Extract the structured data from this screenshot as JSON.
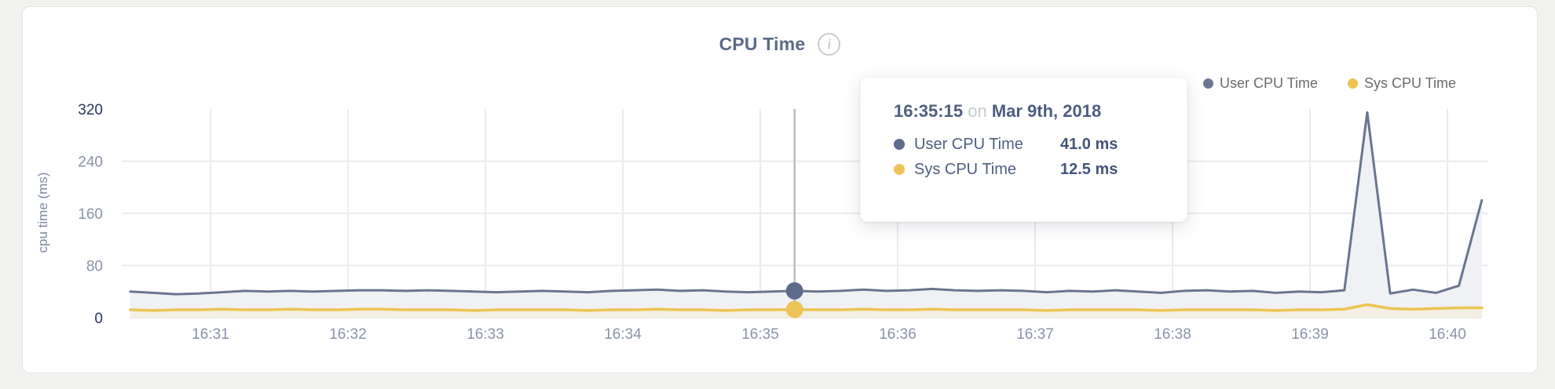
{
  "header": {
    "title": "CPU Time",
    "info_icon_glyph": "i"
  },
  "legend": {
    "items": [
      {
        "label": "User CPU Time",
        "color": "#6b7694"
      },
      {
        "label": "Sys CPU Time",
        "color": "#edc452"
      }
    ]
  },
  "tooltip": {
    "time": "16:35:15",
    "on_word": "on",
    "date": "Mar 9th, 2018",
    "rows": [
      {
        "label": "User CPU Time",
        "value": "41.0 ms",
        "color": "#5f6b8d"
      },
      {
        "label": "Sys CPU Time",
        "value": "12.5 ms",
        "color": "#edc45a"
      }
    ]
  },
  "chart_data": {
    "type": "area",
    "title": "CPU Time",
    "ylabel": "cpu time (ms)",
    "ylim": [
      0,
      320
    ],
    "y_ticks": [
      0,
      80,
      160,
      240,
      320
    ],
    "y_tick_emphasis": [
      0,
      320
    ],
    "x_tick_labels": [
      "16:31",
      "16:32",
      "16:33",
      "16:34",
      "16:35",
      "16:36",
      "16:37",
      "16:38",
      "16:39",
      "16:40"
    ],
    "x_start_time": "16:30:25",
    "x_interval_seconds": 10,
    "grid": true,
    "legend_position": "top-right",
    "hover_point_index": 29,
    "hover_point_time": "16:35:15",
    "series": [
      {
        "name": "User CPU Time",
        "line_color": "#6b7590",
        "fill_color": "#eff1f5",
        "dot_color": "#5f6b8d",
        "values": [
          40,
          38,
          36,
          37,
          39,
          41,
          40,
          41,
          40,
          41,
          42,
          42,
          41,
          42,
          41,
          40,
          39,
          40,
          41,
          40,
          39,
          41,
          42,
          43,
          41,
          42,
          40,
          39,
          40,
          41,
          40,
          41,
          43,
          41,
          42,
          44,
          42,
          41,
          42,
          41,
          39,
          41,
          40,
          42,
          40,
          38,
          41,
          42,
          40,
          41,
          38,
          40,
          39,
          42,
          315,
          37,
          43,
          38,
          49,
          180
        ]
      },
      {
        "name": "Sys CPU Time",
        "line_color": "#edc452",
        "fill_color": "#f3efe2",
        "dot_color": "#edc45a",
        "values": [
          12,
          11,
          12,
          12,
          13,
          12,
          12,
          13,
          12,
          12,
          13,
          13,
          12,
          12,
          12,
          11,
          12,
          12,
          12,
          12,
          11,
          12,
          12,
          13,
          12,
          12,
          11,
          12,
          12,
          12.5,
          12,
          12,
          13,
          12,
          12,
          13,
          12,
          12,
          12,
          12,
          11,
          12,
          12,
          12,
          12,
          11,
          12,
          12,
          12,
          12,
          11,
          12,
          12,
          13,
          20,
          14,
          13,
          14,
          15,
          15
        ]
      }
    ],
    "colors": {
      "grid_line": "#ebebee",
      "baseline": "#e7e7e9",
      "crosshair": "#b9bcc1",
      "tick_label": "#8a93a8",
      "tick_label_emphasis": "#26365c"
    }
  }
}
